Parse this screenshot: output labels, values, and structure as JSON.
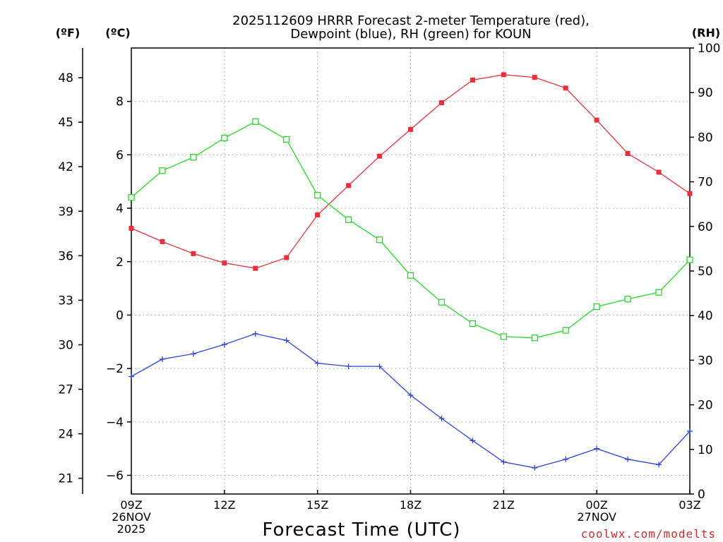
{
  "chart_data": {
    "type": "line",
    "title": {
      "line1": "2025112609 HRRR Forecast 2-meter Temperature (red),",
      "line2": "Dewpoint (blue), RH (green) for KOUN"
    },
    "xlabel": "Forecast Time (UTC)",
    "unit_labels": {
      "fahrenheit": "(ºF)",
      "celsius": "(ºC)",
      "rh": "(RH)"
    },
    "x": [
      0,
      1,
      2,
      3,
      4,
      5,
      6,
      7,
      8,
      9,
      10,
      11,
      12,
      13,
      14,
      15,
      16,
      17,
      18
    ],
    "x_ticks": [
      {
        "x": 0,
        "lines": [
          "09Z",
          "26NOV",
          "2025"
        ]
      },
      {
        "x": 3,
        "lines": [
          "12Z"
        ]
      },
      {
        "x": 6,
        "lines": [
          "15Z"
        ]
      },
      {
        "x": 9,
        "lines": [
          "18Z"
        ]
      },
      {
        "x": 12,
        "lines": [
          "21Z"
        ]
      },
      {
        "x": 15,
        "lines": [
          "00Z",
          "27NOV"
        ]
      },
      {
        "x": 18,
        "lines": [
          "03Z"
        ]
      }
    ],
    "celsius_axis": {
      "ylim": [
        -6.7,
        10.0
      ],
      "ticks": [
        -6,
        -4,
        -2,
        0,
        2,
        4,
        6,
        8
      ]
    },
    "fahrenheit_axis": {
      "ylim": [
        19.94,
        50.0
      ],
      "ticks": [
        21,
        24,
        27,
        30,
        33,
        36,
        39,
        42,
        45,
        48
      ]
    },
    "rh_axis": {
      "ylim": [
        0,
        100
      ],
      "ticks": [
        0,
        10,
        20,
        30,
        40,
        50,
        60,
        70,
        80,
        90,
        100
      ]
    },
    "series": [
      {
        "name": "Temperature",
        "unit": "°C",
        "axis": "celsius",
        "color": "#e8303a",
        "marker": "filled-square",
        "values": [
          3.25,
          2.75,
          2.3,
          1.95,
          1.75,
          2.15,
          3.75,
          4.85,
          5.95,
          6.95,
          7.95,
          8.8,
          9.0,
          8.9,
          8.5,
          7.3,
          6.05,
          5.35,
          4.55
        ]
      },
      {
        "name": "Dewpoint",
        "unit": "°C",
        "axis": "celsius",
        "color": "#2b44e0",
        "marker": "plus",
        "values": [
          -2.3,
          -1.65,
          -1.45,
          -1.1,
          -0.7,
          -0.95,
          -1.8,
          -1.92,
          -1.92,
          -3.0,
          -3.87,
          -4.7,
          -5.5,
          -5.72,
          -5.4,
          -5.0,
          -5.4,
          -5.6,
          -4.35
        ]
      },
      {
        "name": "RH",
        "unit": "%",
        "axis": "rh",
        "color": "#22dd22",
        "marker": "open-square",
        "values": [
          66.5,
          72.5,
          75.5,
          79.8,
          83.5,
          79.5,
          67,
          61.5,
          57,
          49,
          43,
          38.2,
          35.3,
          35,
          36.7,
          42,
          43.7,
          45.2,
          52.5
        ]
      }
    ],
    "grid": true,
    "legend": "none"
  },
  "credit": "coolwx.com/modelts"
}
